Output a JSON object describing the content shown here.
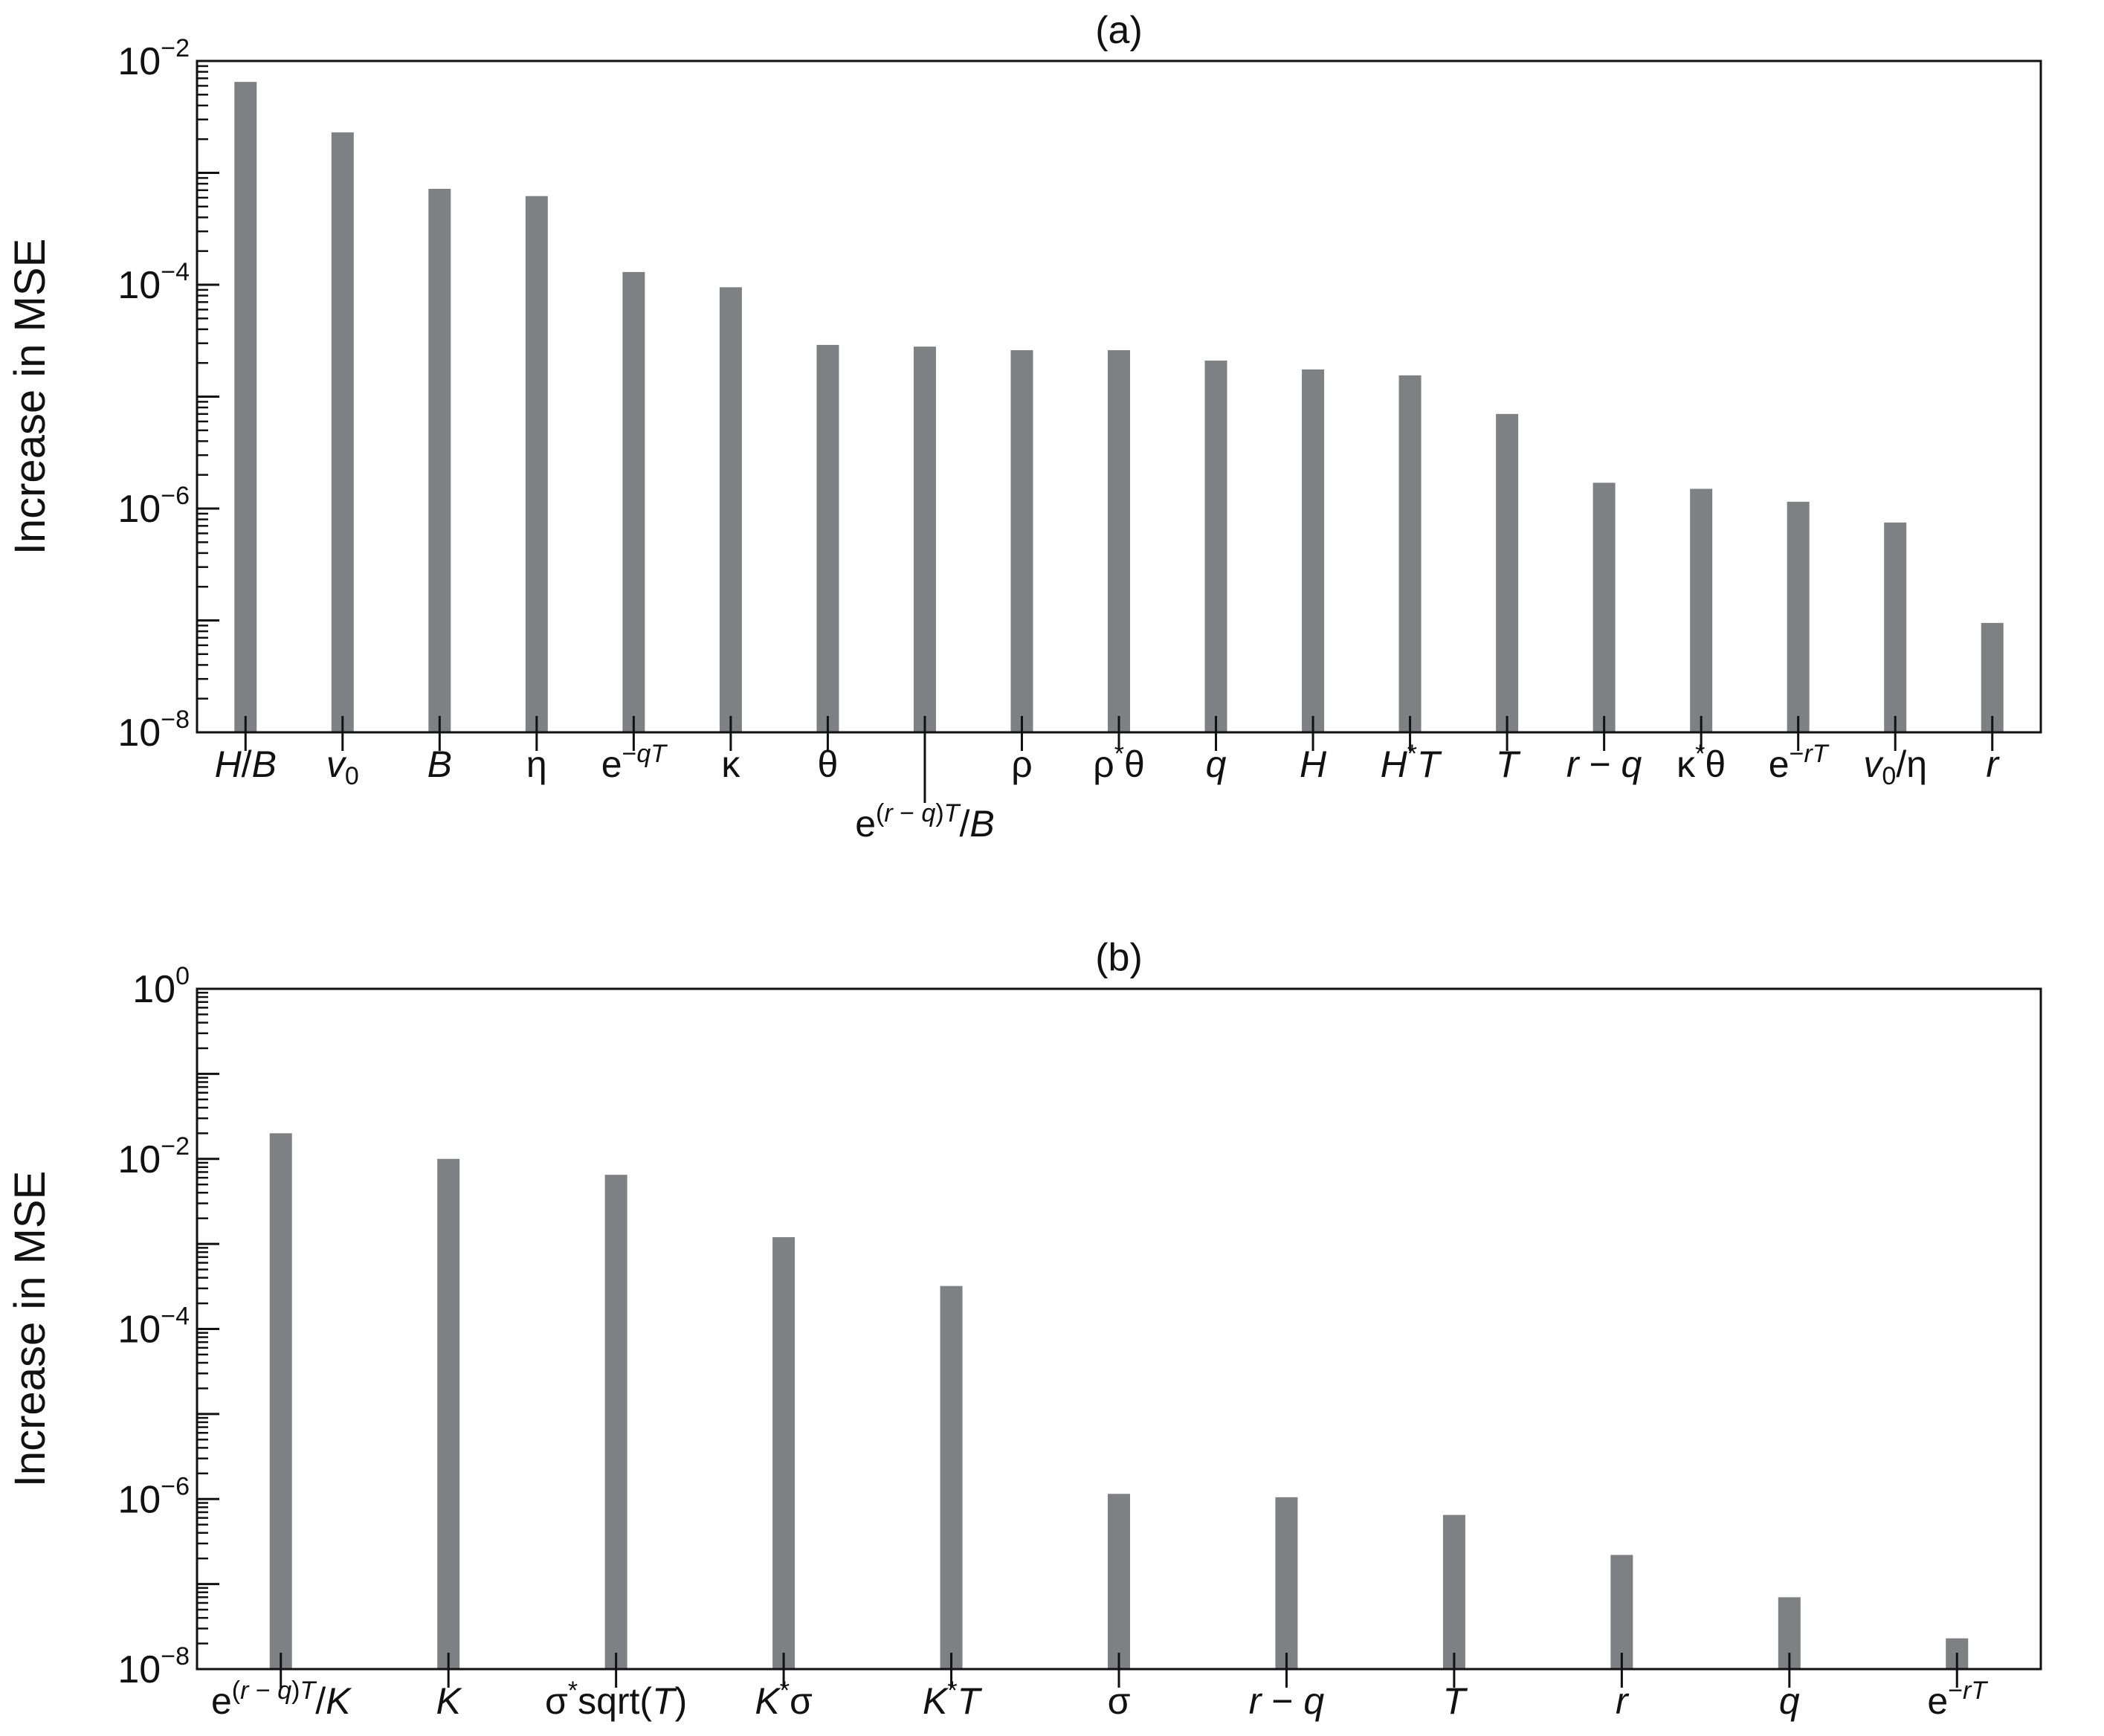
{
  "colors": {
    "bar": "#7f8084",
    "axis": "#111111",
    "background": "#ffffff"
  },
  "chart_data": [
    {
      "type": "bar",
      "title": "(a)",
      "xlabel": "",
      "ylabel": "Increase in MSE",
      "yscale": "log",
      "ylim": [
        1e-08,
        0.01
      ],
      "ytick_labels": [
        {
          "base": "10",
          "exp": "−8"
        },
        {
          "base": "10",
          "exp": "−6"
        },
        {
          "base": "10",
          "exp": "−4"
        },
        {
          "base": "10",
          "exp": "−2"
        }
      ],
      "grid": false,
      "categories": [
        [
          {
            "t": "H",
            "s": "i"
          },
          {
            "t": "/"
          },
          {
            "t": "B",
            "s": "i"
          }
        ],
        [
          {
            "t": "v",
            "s": "i"
          },
          {
            "t": "0",
            "s": "sub"
          }
        ],
        [
          {
            "t": "B",
            "s": "i"
          }
        ],
        [
          {
            "t": "η"
          }
        ],
        [
          {
            "t": "e"
          },
          {
            "t": "−",
            "s": "sup"
          },
          {
            "t": "qT",
            "s": "supi"
          }
        ],
        [
          {
            "t": "κ"
          }
        ],
        [
          {
            "t": "θ"
          }
        ],
        [
          {
            "t": "e"
          },
          {
            "t": "(",
            "s": "sup"
          },
          {
            "t": "r",
            "s": "supi"
          },
          {
            "t": " − ",
            "s": "sup"
          },
          {
            "t": "q",
            "s": "supi"
          },
          {
            "t": ")",
            "s": "sup"
          },
          {
            "t": "T",
            "s": "supi"
          },
          {
            "t": "/"
          },
          {
            "t": "B",
            "s": "i"
          }
        ],
        [
          {
            "t": "ρ"
          }
        ],
        [
          {
            "t": "ρ"
          },
          {
            "t": "*",
            "s": "sup"
          },
          {
            "t": "θ"
          }
        ],
        [
          {
            "t": "q",
            "s": "i"
          }
        ],
        [
          {
            "t": "H",
            "s": "i"
          }
        ],
        [
          {
            "t": "H",
            "s": "i"
          },
          {
            "t": "*",
            "s": "sup"
          },
          {
            "t": "T",
            "s": "i"
          }
        ],
        [
          {
            "t": "T",
            "s": "i"
          }
        ],
        [
          {
            "t": "r",
            "s": "i"
          },
          {
            "t": " − "
          },
          {
            "t": "q",
            "s": "i"
          }
        ],
        [
          {
            "t": "κ"
          },
          {
            "t": "*",
            "s": "sup"
          },
          {
            "t": "θ"
          }
        ],
        [
          {
            "t": "e"
          },
          {
            "t": "−",
            "s": "sup"
          },
          {
            "t": "rT",
            "s": "supi"
          }
        ],
        [
          {
            "t": "v",
            "s": "i"
          },
          {
            "t": "0",
            "s": "sub"
          },
          {
            "t": "/η"
          }
        ],
        [
          {
            "t": "r",
            "s": "i"
          }
        ]
      ],
      "values": [
        0.0065,
        0.0023,
        0.00072,
        0.00062,
        0.00013,
        9.5e-05,
        2.9e-05,
        2.8e-05,
        2.6e-05,
        2.6e-05,
        2.1e-05,
        1.75e-05,
        1.55e-05,
        7e-06,
        1.7e-06,
        1.5e-06,
        1.15e-06,
        7.5e-07,
        9.5e-08
      ]
    },
    {
      "type": "bar",
      "title": "(b)",
      "xlabel": "",
      "ylabel": "Increase in MSE",
      "yscale": "log",
      "ylim": [
        1e-08,
        1
      ],
      "ytick_labels": [
        {
          "base": "10",
          "exp": "−8"
        },
        {
          "base": "10",
          "exp": "−6"
        },
        {
          "base": "10",
          "exp": "−4"
        },
        {
          "base": "10",
          "exp": "−2"
        },
        {
          "base": "10",
          "exp": "0"
        }
      ],
      "grid": false,
      "categories": [
        [
          {
            "t": "e"
          },
          {
            "t": "(",
            "s": "sup"
          },
          {
            "t": "r",
            "s": "supi"
          },
          {
            "t": " − ",
            "s": "sup"
          },
          {
            "t": "q",
            "s": "supi"
          },
          {
            "t": ")",
            "s": "sup"
          },
          {
            "t": "T",
            "s": "supi"
          },
          {
            "t": "/"
          },
          {
            "t": "K",
            "s": "i"
          }
        ],
        [
          {
            "t": "K",
            "s": "i"
          }
        ],
        [
          {
            "t": "σ"
          },
          {
            "t": "*",
            "s": "sup"
          },
          {
            "t": "sqrt("
          },
          {
            "t": "T",
            "s": "i"
          },
          {
            "t": ")"
          }
        ],
        [
          {
            "t": "K",
            "s": "i"
          },
          {
            "t": "*",
            "s": "sup"
          },
          {
            "t": "σ"
          }
        ],
        [
          {
            "t": "K",
            "s": "i"
          },
          {
            "t": "*",
            "s": "sup"
          },
          {
            "t": "T",
            "s": "i"
          }
        ],
        [
          {
            "t": "σ"
          }
        ],
        [
          {
            "t": "r",
            "s": "i"
          },
          {
            "t": " − "
          },
          {
            "t": "q",
            "s": "i"
          }
        ],
        [
          {
            "t": "T",
            "s": "i"
          }
        ],
        [
          {
            "t": "r",
            "s": "i"
          }
        ],
        [
          {
            "t": "q",
            "s": "i"
          }
        ],
        [
          {
            "t": "e"
          },
          {
            "t": "−",
            "s": "sup"
          },
          {
            "t": "rT",
            "s": "supi"
          }
        ]
      ],
      "values": [
        0.02,
        0.01,
        0.0065,
        0.0012,
        0.00032,
        1.15e-06,
        1.05e-06,
        6.5e-07,
        2.2e-07,
        7e-08,
        2.3e-08
      ]
    }
  ]
}
